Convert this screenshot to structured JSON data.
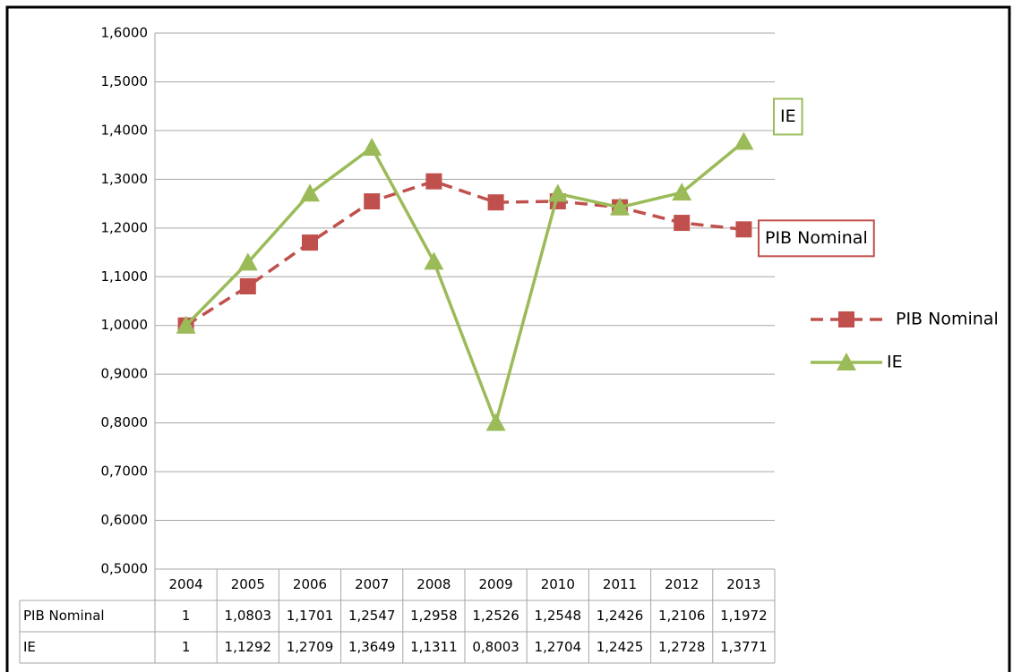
{
  "chart_data": {
    "type": "line",
    "categories": [
      "2004",
      "2005",
      "2006",
      "2007",
      "2008",
      "2009",
      "2010",
      "2011",
      "2012",
      "2013"
    ],
    "series": [
      {
        "name": "PIB Nominal",
        "color": "#c0504d",
        "dashed": true,
        "marker": "square",
        "values": [
          1,
          1.0803,
          1.1701,
          1.2547,
          1.2958,
          1.2526,
          1.2548,
          1.2426,
          1.2106,
          1.1972
        ],
        "value_labels": [
          "1",
          "1,0803",
          "1,1701",
          "1,2547",
          "1,2958",
          "1,2526",
          "1,2548",
          "1,2426",
          "1,2106",
          "1,1972"
        ]
      },
      {
        "name": "IE",
        "color": "#9bbb59",
        "dashed": false,
        "marker": "triangle",
        "values": [
          1,
          1.1292,
          1.2709,
          1.3649,
          1.1311,
          0.8003,
          1.2704,
          1.2425,
          1.2728,
          1.3771
        ],
        "value_labels": [
          "1",
          "1,1292",
          "1,2709",
          "1,3649",
          "1,1311",
          "0,8003",
          "1,2704",
          "1,2425",
          "1,2728",
          "1,3771"
        ]
      }
    ],
    "ylim": [
      0.5,
      1.6
    ],
    "yticks": [
      {
        "value": 0.5,
        "label": "0,5000"
      },
      {
        "value": 0.6,
        "label": "0,6000"
      },
      {
        "value": 0.7,
        "label": "0,7000"
      },
      {
        "value": 0.8,
        "label": "0,8000"
      },
      {
        "value": 0.9,
        "label": "0,9000"
      },
      {
        "value": 1.0,
        "label": "1,0000"
      },
      {
        "value": 1.1,
        "label": "1,1000"
      },
      {
        "value": 1.2,
        "label": "1,2000"
      },
      {
        "value": 1.3,
        "label": "1,3000"
      },
      {
        "value": 1.4,
        "label": "1,4000"
      },
      {
        "value": 1.5,
        "label": "1,5000"
      },
      {
        "value": 1.6,
        "label": "1,6000"
      }
    ],
    "grid": true,
    "legend": "right",
    "annotations": [
      {
        "text": "IE",
        "series": 1
      },
      {
        "text": "PIB Nominal",
        "series": 0
      }
    ]
  }
}
